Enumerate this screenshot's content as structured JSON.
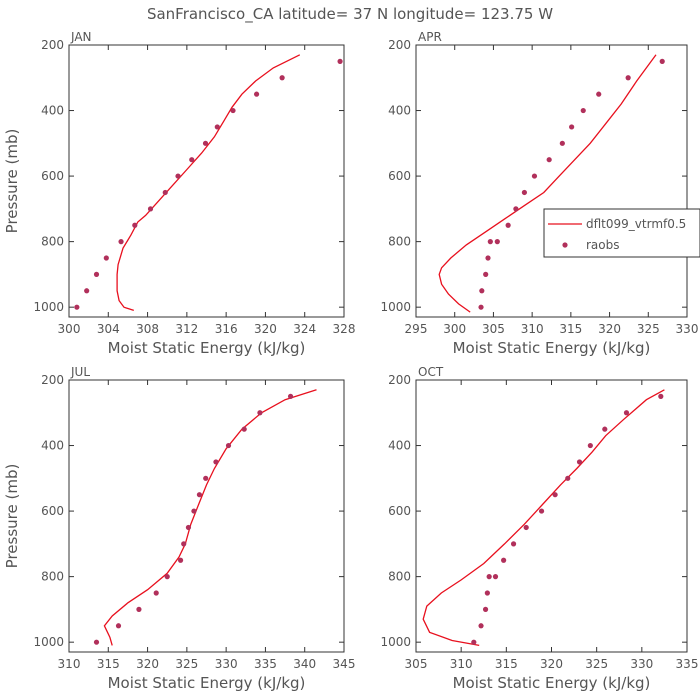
{
  "title": "SanFrancisco_CA  latitude= 37 N longitude= 123.75 W",
  "colors": {
    "model": "#e8101e",
    "raobs": "#b1305b",
    "axes": "#333333",
    "text": "#555555"
  },
  "legend": {
    "model_label": "dflt099_vtrmf0.5",
    "raobs_label": "raobs"
  },
  "chart_data": [
    {
      "type": "line",
      "panel_title": "JAN",
      "xlabel": "Moist Static Energy (kJ/kg)",
      "ylabel": "Pressure (mb)",
      "xlim": [
        300,
        328
      ],
      "ylim": [
        1030,
        200
      ],
      "xticks": [
        "300",
        "304",
        "308",
        "312",
        "316",
        "320",
        "324",
        "328"
      ],
      "yticks": [
        "200",
        "400",
        "600",
        "800",
        "1000"
      ],
      "series": [
        {
          "name": "dflt099_vtrmf0.5",
          "style": "line",
          "x": [
            306.6,
            305.6,
            305.1,
            304.9,
            304.9,
            305.0,
            305.5,
            306.3,
            307.0,
            307.8,
            309.0,
            310.5,
            312.0,
            313.5,
            314.8,
            315.8,
            316.6,
            317.6,
            319.0,
            320.8,
            323.5
          ],
          "y": [
            1010,
            1000,
            980,
            950,
            900,
            870,
            820,
            780,
            740,
            720,
            680,
            630,
            580,
            530,
            480,
            430,
            390,
            350,
            310,
            270,
            230
          ]
        },
        {
          "name": "raobs",
          "style": "points",
          "x": [
            300.8,
            301.8,
            302.8,
            303.8,
            305.3,
            306.7,
            308.3,
            309.8,
            311.1,
            312.5,
            313.9,
            315.1,
            316.7,
            319.1,
            321.7,
            327.6
          ],
          "y": [
            1000,
            950,
            900,
            850,
            800,
            750,
            700,
            650,
            600,
            550,
            500,
            450,
            400,
            350,
            300,
            250
          ]
        }
      ]
    },
    {
      "type": "line",
      "panel_title": "APR",
      "xlabel": "Moist Static Energy (kJ/kg)",
      "ylabel": "",
      "xlim": [
        295,
        330
      ],
      "ylim": [
        1030,
        200
      ],
      "xticks": [
        "295",
        "300",
        "305",
        "310",
        "315",
        "320",
        "325",
        "330"
      ],
      "yticks": [
        "200",
        "400",
        "600",
        "800",
        "1000"
      ],
      "legend_position": "right",
      "series": [
        {
          "name": "dflt099_vtrmf0.5",
          "style": "line",
          "x": [
            302.0,
            300.5,
            299.2,
            298.3,
            298.0,
            298.3,
            299.5,
            301.5,
            304.0,
            306.5,
            309.0,
            311.5,
            313.5,
            315.5,
            317.5,
            319.5,
            321.5,
            323.5,
            326.0
          ],
          "y": [
            1015,
            990,
            960,
            930,
            900,
            880,
            850,
            810,
            770,
            730,
            690,
            650,
            600,
            550,
            500,
            440,
            380,
            310,
            230
          ]
        },
        {
          "name": "raobs",
          "style": "points",
          "x": [
            303.4,
            303.5,
            304.0,
            304.3,
            304.6,
            305.5,
            306.9,
            307.9,
            309.0,
            310.3,
            312.2,
            313.9,
            315.1,
            316.6,
            318.6,
            322.4,
            326.8
          ],
          "y": [
            1000,
            950,
            900,
            850,
            800,
            800,
            750,
            700,
            650,
            600,
            550,
            500,
            450,
            400,
            350,
            300,
            250
          ]
        }
      ]
    },
    {
      "type": "line",
      "panel_title": "JUL",
      "xlabel": "Moist Static Energy (kJ/kg)",
      "ylabel": "Pressure (mb)",
      "xlim": [
        310,
        345
      ],
      "ylim": [
        1030,
        200
      ],
      "xticks": [
        "310",
        "315",
        "320",
        "325",
        "330",
        "335",
        "340",
        "345"
      ],
      "yticks": [
        "200",
        "400",
        "600",
        "800",
        "1000"
      ],
      "series": [
        {
          "name": "dflt099_vtrmf0.5",
          "style": "line",
          "x": [
            315.5,
            315.2,
            314.5,
            315.5,
            317.5,
            320.0,
            322.5,
            324.0,
            324.8,
            325.5,
            326.5,
            327.5,
            328.5,
            330.0,
            332.0,
            334.5,
            337.5,
            341.5
          ],
          "y": [
            1010,
            985,
            950,
            920,
            880,
            840,
            790,
            740,
            700,
            640,
            580,
            520,
            470,
            410,
            350,
            300,
            260,
            230
          ]
        },
        {
          "name": "raobs",
          "style": "points",
          "x": [
            313.5,
            316.3,
            318.9,
            321.1,
            322.5,
            324.2,
            324.6,
            325.2,
            325.9,
            326.6,
            327.4,
            328.7,
            330.3,
            332.3,
            334.3,
            338.2
          ],
          "y": [
            1000,
            950,
            900,
            850,
            800,
            750,
            700,
            650,
            600,
            550,
            500,
            450,
            400,
            350,
            300,
            250
          ]
        }
      ]
    },
    {
      "type": "line",
      "panel_title": "OCT",
      "xlabel": "Moist Static Energy (kJ/kg)",
      "ylabel": "",
      "xlim": [
        305,
        335
      ],
      "ylim": [
        1030,
        200
      ],
      "xticks": [
        "305",
        "310",
        "315",
        "320",
        "325",
        "330",
        "335"
      ],
      "yticks": [
        "200",
        "400",
        "600",
        "800",
        "1000"
      ],
      "series": [
        {
          "name": "dflt099_vtrmf0.5",
          "style": "line",
          "x": [
            312.0,
            309.0,
            306.5,
            305.8,
            306.2,
            307.8,
            310.0,
            312.5,
            314.8,
            317.0,
            319.0,
            321.0,
            322.8,
            324.5,
            326.0,
            328.0,
            330.5,
            332.5
          ],
          "y": [
            1010,
            995,
            970,
            930,
            890,
            850,
            810,
            760,
            700,
            640,
            580,
            520,
            470,
            420,
            370,
            320,
            260,
            230
          ]
        },
        {
          "name": "raobs",
          "style": "points",
          "x": [
            311.4,
            312.2,
            312.7,
            312.9,
            313.1,
            313.8,
            314.7,
            315.8,
            317.2,
            318.9,
            320.4,
            321.8,
            323.1,
            324.3,
            325.9,
            328.3,
            332.1
          ],
          "y": [
            1000,
            950,
            900,
            850,
            800,
            800,
            750,
            700,
            650,
            600,
            550,
            500,
            450,
            400,
            350,
            300,
            250
          ]
        }
      ]
    }
  ]
}
